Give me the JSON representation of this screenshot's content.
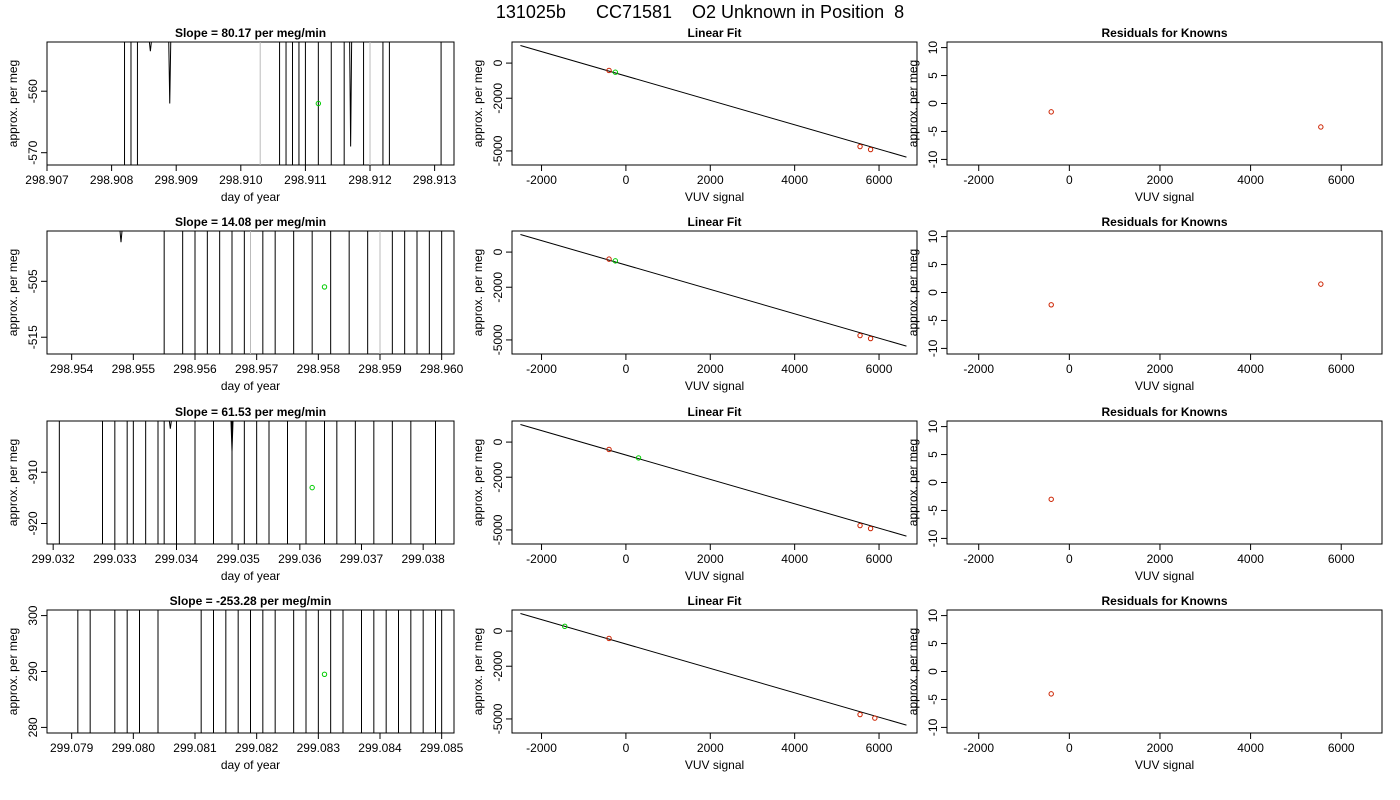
{
  "title": "131025b      CC71581    O2 Unknown in Position  8",
  "colors": {
    "trace": "#000000",
    "unknown_point": "#00cc00",
    "known_point": "#cc2200",
    "guide": "#bbbbbb"
  },
  "chart_data": [
    {
      "type": "line",
      "panel": "timeseries",
      "row": 1,
      "title": "Slope =  80.17  per meg/min",
      "xlabel": "day of year",
      "ylabel": "approx. per meg",
      "xlim": [
        298.907,
        298.9133
      ],
      "ylim": [
        -572,
        -552
      ],
      "xticks": [
        "298.907",
        "298.908",
        "298.909",
        "298.910",
        "298.911",
        "298.912",
        "298.913"
      ],
      "yticks": [
        "-560",
        "-570"
      ],
      "ytick_values": [
        -560,
        -570
      ],
      "guides_x": [
        298.9103,
        298.912
      ],
      "spikes": [
        {
          "x": 298.9082
        },
        {
          "x": 298.9083
        },
        {
          "x": 298.9084
        },
        {
          "x": 298.9106
        },
        {
          "x": 298.9107
        },
        {
          "x": 298.9108
        },
        {
          "x": 298.9109
        },
        {
          "x": 298.911
        },
        {
          "x": 298.9112
        },
        {
          "x": 298.9114
        },
        {
          "x": 298.9116
        },
        {
          "x": 298.9119
        },
        {
          "x": 298.9122
        },
        {
          "x": 298.9123
        },
        {
          "x": 298.9131
        }
      ],
      "dips": [
        {
          "x": 298.9089,
          "y": -562.0
        },
        {
          "x": 298.9086,
          "y": -553.5
        },
        {
          "x": 298.9117,
          "y": -569.0
        }
      ],
      "unknown_point": {
        "x": 298.9112,
        "y": -562.0
      }
    },
    {
      "type": "scatter",
      "panel": "linear_fit",
      "row": 1,
      "title": "Linear Fit",
      "xlabel": "VUV signal",
      "ylabel": "approx. per meg",
      "xlim": [
        -2700,
        6900
      ],
      "ylim": [
        -5800,
        1200
      ],
      "xticks": [
        -2000,
        0,
        2000,
        4000,
        6000
      ],
      "yticks": [
        0,
        -2000,
        -5000
      ],
      "fit_line": {
        "x": [
          -2500,
          6650
        ],
        "y": [
          1000,
          -5350
        ]
      },
      "known_points": [
        {
          "x": -400,
          "y": -420
        },
        {
          "x": 5550,
          "y": -4750
        },
        {
          "x": 5800,
          "y": -4920
        }
      ],
      "unknown_points": [
        {
          "x": -250,
          "y": -520
        }
      ]
    },
    {
      "type": "scatter",
      "panel": "residuals",
      "row": 1,
      "title": "Residuals for Knowns",
      "xlabel": "VUV signal",
      "ylabel": "approx. per meg",
      "xlim": [
        -2700,
        6900
      ],
      "ylim": [
        -11,
        11
      ],
      "xticks": [
        -2000,
        0,
        2000,
        4000,
        6000
      ],
      "yticks": [
        10,
        5,
        0,
        -5,
        -10
      ],
      "points": [
        {
          "x": -400,
          "y": -1.5
        },
        {
          "x": 5550,
          "y": -4.2
        }
      ]
    },
    {
      "type": "line",
      "panel": "timeseries",
      "row": 2,
      "title": "Slope =  14.08  per meg/min",
      "xlabel": "day of year",
      "ylabel": "approx. per meg",
      "xlim": [
        298.9536,
        298.9602
      ],
      "ylim": [
        -518,
        -496
      ],
      "xticks": [
        "298.954",
        "298.955",
        "298.956",
        "298.957",
        "298.958",
        "298.959",
        "298.960"
      ],
      "yticks": [
        "-505",
        "-515"
      ],
      "ytick_values": [
        -505,
        -515
      ],
      "guides_x": [
        298.9569,
        298.959
      ],
      "spikes": [
        {
          "x": 298.9555
        },
        {
          "x": 298.9558
        },
        {
          "x": 298.956
        },
        {
          "x": 298.9562
        },
        {
          "x": 298.9564
        },
        {
          "x": 298.9566
        },
        {
          "x": 298.9568
        },
        {
          "x": 298.9571
        },
        {
          "x": 298.9573
        },
        {
          "x": 298.9576
        },
        {
          "x": 298.9579
        },
        {
          "x": 298.9582
        },
        {
          "x": 298.9585
        },
        {
          "x": 298.9588
        },
        {
          "x": 298.9592
        },
        {
          "x": 298.9594
        },
        {
          "x": 298.9596
        },
        {
          "x": 298.9598
        },
        {
          "x": 298.96
        }
      ],
      "dips": [
        {
          "x": 298.9548,
          "y": -498.0
        }
      ],
      "unknown_point": {
        "x": 298.9581,
        "y": -506.0
      }
    },
    {
      "type": "scatter",
      "panel": "linear_fit",
      "row": 2,
      "title": "Linear Fit",
      "xlabel": "VUV signal",
      "ylabel": "approx. per meg",
      "xlim": [
        -2700,
        6900
      ],
      "ylim": [
        -5800,
        1200
      ],
      "xticks": [
        -2000,
        0,
        2000,
        4000,
        6000
      ],
      "yticks": [
        0,
        -2000,
        -5000
      ],
      "fit_line": {
        "x": [
          -2500,
          6650
        ],
        "y": [
          1000,
          -5350
        ]
      },
      "known_points": [
        {
          "x": -400,
          "y": -400
        },
        {
          "x": 5550,
          "y": -4750
        },
        {
          "x": 5800,
          "y": -4920
        }
      ],
      "unknown_points": [
        {
          "x": -250,
          "y": -500
        }
      ]
    },
    {
      "type": "scatter",
      "panel": "residuals",
      "row": 2,
      "title": "Residuals for Knowns",
      "xlabel": "VUV signal",
      "ylabel": "approx. per meg",
      "xlim": [
        -2700,
        6900
      ],
      "ylim": [
        -11,
        11
      ],
      "xticks": [
        -2000,
        0,
        2000,
        4000,
        6000
      ],
      "yticks": [
        10,
        5,
        0,
        -5,
        -10
      ],
      "points": [
        {
          "x": -400,
          "y": -2.2
        },
        {
          "x": 5550,
          "y": 1.5
        }
      ]
    },
    {
      "type": "line",
      "panel": "timeseries",
      "row": 3,
      "title": "Slope =  61.53  per meg/min",
      "xlabel": "day of year",
      "ylabel": "approx. per meg",
      "xlim": [
        299.0319,
        299.0385
      ],
      "ylim": [
        -924,
        -900
      ],
      "xticks": [
        "299.032",
        "299.033",
        "299.034",
        "299.035",
        "299.036",
        "299.037",
        "299.038"
      ],
      "yticks": [
        "-910",
        "-920"
      ],
      "ytick_values": [
        -910,
        -920
      ],
      "guides_x": [],
      "spikes": [
        {
          "x": 299.0321
        },
        {
          "x": 299.0328
        },
        {
          "x": 299.033
        },
        {
          "x": 299.0332
        },
        {
          "x": 299.0333
        },
        {
          "x": 299.0335
        },
        {
          "x": 299.0337
        },
        {
          "x": 299.0338
        },
        {
          "x": 299.034
        },
        {
          "x": 299.0343
        },
        {
          "x": 299.0346
        },
        {
          "x": 299.0349
        },
        {
          "x": 299.0351
        },
        {
          "x": 299.0353
        },
        {
          "x": 299.0355
        },
        {
          "x": 299.0358
        },
        {
          "x": 299.0361
        },
        {
          "x": 299.0364
        },
        {
          "x": 299.0366
        },
        {
          "x": 299.0369
        },
        {
          "x": 299.0372
        },
        {
          "x": 299.0375
        },
        {
          "x": 299.0378
        },
        {
          "x": 299.0382
        }
      ],
      "dips": [
        {
          "x": 299.0349,
          "y": -906.0
        },
        {
          "x": 299.0339,
          "y": -901.5
        }
      ],
      "unknown_point": {
        "x": 299.0362,
        "y": -913.0
      }
    },
    {
      "type": "scatter",
      "panel": "linear_fit",
      "row": 3,
      "title": "Linear Fit",
      "xlabel": "VUV signal",
      "ylabel": "approx. per meg",
      "xlim": [
        -2700,
        6900
      ],
      "ylim": [
        -5800,
        1200
      ],
      "xticks": [
        -2000,
        0,
        2000,
        4000,
        6000
      ],
      "yticks": [
        0,
        -2000,
        -5000
      ],
      "fit_line": {
        "x": [
          -2500,
          6650
        ],
        "y": [
          1000,
          -5350
        ]
      },
      "known_points": [
        {
          "x": -400,
          "y": -420
        },
        {
          "x": 5550,
          "y": -4750
        },
        {
          "x": 5800,
          "y": -4920
        }
      ],
      "unknown_points": [
        {
          "x": 300,
          "y": -900
        }
      ]
    },
    {
      "type": "scatter",
      "panel": "residuals",
      "row": 3,
      "title": "Residuals for Knowns",
      "xlabel": "VUV signal",
      "ylabel": "approx. per meg",
      "xlim": [
        -2700,
        6900
      ],
      "ylim": [
        -11,
        11
      ],
      "xticks": [
        -2000,
        0,
        2000,
        4000,
        6000
      ],
      "yticks": [
        10,
        5,
        0,
        -5,
        -10
      ],
      "points": [
        {
          "x": -400,
          "y": -3.0
        }
      ]
    },
    {
      "type": "line",
      "panel": "timeseries",
      "row": 4,
      "title": "Slope =  -253.28  per meg/min",
      "xlabel": "day of year",
      "ylabel": "approx. per meg",
      "xlim": [
        299.0786,
        299.0852
      ],
      "ylim": [
        279,
        301
      ],
      "xticks": [
        "299.079",
        "299.080",
        "299.081",
        "299.082",
        "299.083",
        "299.084",
        "299.085"
      ],
      "yticks": [
        "300",
        "290",
        "280"
      ],
      "ytick_values": [
        300,
        290,
        280
      ],
      "guides_x": [],
      "spikes": [
        {
          "x": 299.0791
        },
        {
          "x": 299.0793
        },
        {
          "x": 299.0797
        },
        {
          "x": 299.0799
        },
        {
          "x": 299.0801
        },
        {
          "x": 299.0804
        },
        {
          "x": 299.0811
        },
        {
          "x": 299.0813
        },
        {
          "x": 299.0815
        },
        {
          "x": 299.0817
        },
        {
          "x": 299.0819
        },
        {
          "x": 299.0821
        },
        {
          "x": 299.0823
        },
        {
          "x": 299.0826
        },
        {
          "x": 299.0828
        },
        {
          "x": 299.083
        },
        {
          "x": 299.0832
        },
        {
          "x": 299.0834
        },
        {
          "x": 299.0837
        },
        {
          "x": 299.0839
        },
        {
          "x": 299.0841
        },
        {
          "x": 299.0843
        },
        {
          "x": 299.0845
        },
        {
          "x": 299.0847
        },
        {
          "x": 299.0849
        },
        {
          "x": 299.085
        }
      ],
      "dips": [],
      "unknown_point": {
        "x": 299.0831,
        "y": 289.5
      }
    },
    {
      "type": "scatter",
      "panel": "linear_fit",
      "row": 4,
      "title": "Linear Fit",
      "xlabel": "VUV signal",
      "ylabel": "approx. per meg",
      "xlim": [
        -2700,
        6900
      ],
      "ylim": [
        -5800,
        1200
      ],
      "xticks": [
        -2000,
        0,
        2000,
        4000,
        6000
      ],
      "yticks": [
        0,
        -2000,
        -5000
      ],
      "fit_line": {
        "x": [
          -2500,
          6650
        ],
        "y": [
          1000,
          -5350
        ]
      },
      "known_points": [
        {
          "x": -400,
          "y": -420
        },
        {
          "x": 5550,
          "y": -4750
        },
        {
          "x": 5900,
          "y": -4950
        }
      ],
      "unknown_points": [
        {
          "x": -1450,
          "y": 270
        }
      ]
    },
    {
      "type": "scatter",
      "panel": "residuals",
      "row": 4,
      "title": "Residuals for Knowns",
      "xlabel": "VUV signal",
      "ylabel": "approx. per meg",
      "xlim": [
        -2700,
        6900
      ],
      "ylim": [
        -11,
        11
      ],
      "xticks": [
        -2000,
        0,
        2000,
        4000,
        6000
      ],
      "yticks": [
        10,
        5,
        0,
        -5,
        -10
      ],
      "points": [
        {
          "x": -400,
          "y": -4.0
        }
      ]
    }
  ]
}
